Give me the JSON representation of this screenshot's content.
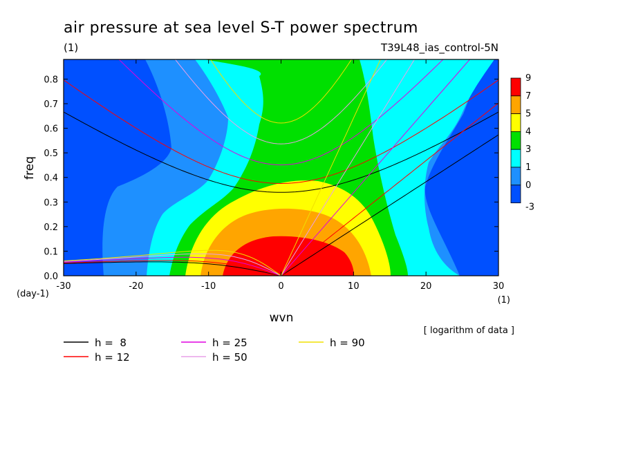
{
  "chart_data": {
    "type": "heatmap",
    "title": "air pressure at sea level S-T power spectrum",
    "subtitle_left": "(1)",
    "subtitle_right": "T39L48_ias_control-5N",
    "xlabel": "wvn",
    "ylabel": "freq",
    "x_unit": "(1)",
    "y_unit": "(day-1)",
    "note": "[ logarithm of data ]",
    "xlim": [
      -30,
      30
    ],
    "ylim": [
      0,
      0.88
    ],
    "xticks": [
      -30,
      -20,
      -10,
      0,
      10,
      20,
      30
    ],
    "yticks": [
      0.0,
      0.1,
      0.2,
      0.3,
      0.4,
      0.5,
      0.6,
      0.7,
      0.8
    ],
    "xtick_labels": [
      "-30",
      "-20",
      "-10",
      "0",
      "10",
      "20",
      "30"
    ],
    "ytick_labels": [
      "0.0",
      "0.1",
      "0.2",
      "0.3",
      "0.4",
      "0.5",
      "0.6",
      "0.7",
      "0.8"
    ],
    "colorbar": {
      "levels": [
        "9",
        "7",
        "5",
        "4",
        "3",
        "1",
        "0",
        "-3"
      ],
      "colors": [
        "#ff0000",
        "#ffa500",
        "#ffff00",
        "#00e000",
        "#00ffff",
        "#1e90ff",
        "#0050ff"
      ]
    },
    "dispersion_curves": [
      {
        "label": "h =  8",
        "h": 8,
        "color": "#000000"
      },
      {
        "label": "h = 12",
        "h": 12,
        "color": "#ff0000"
      },
      {
        "label": "h = 25",
        "h": 25,
        "color": "#e000e0"
      },
      {
        "label": "h = 50",
        "h": 50,
        "color": "#e8a0e8"
      },
      {
        "label": "h = 90",
        "h": 90,
        "color": "#f0e000"
      }
    ]
  }
}
